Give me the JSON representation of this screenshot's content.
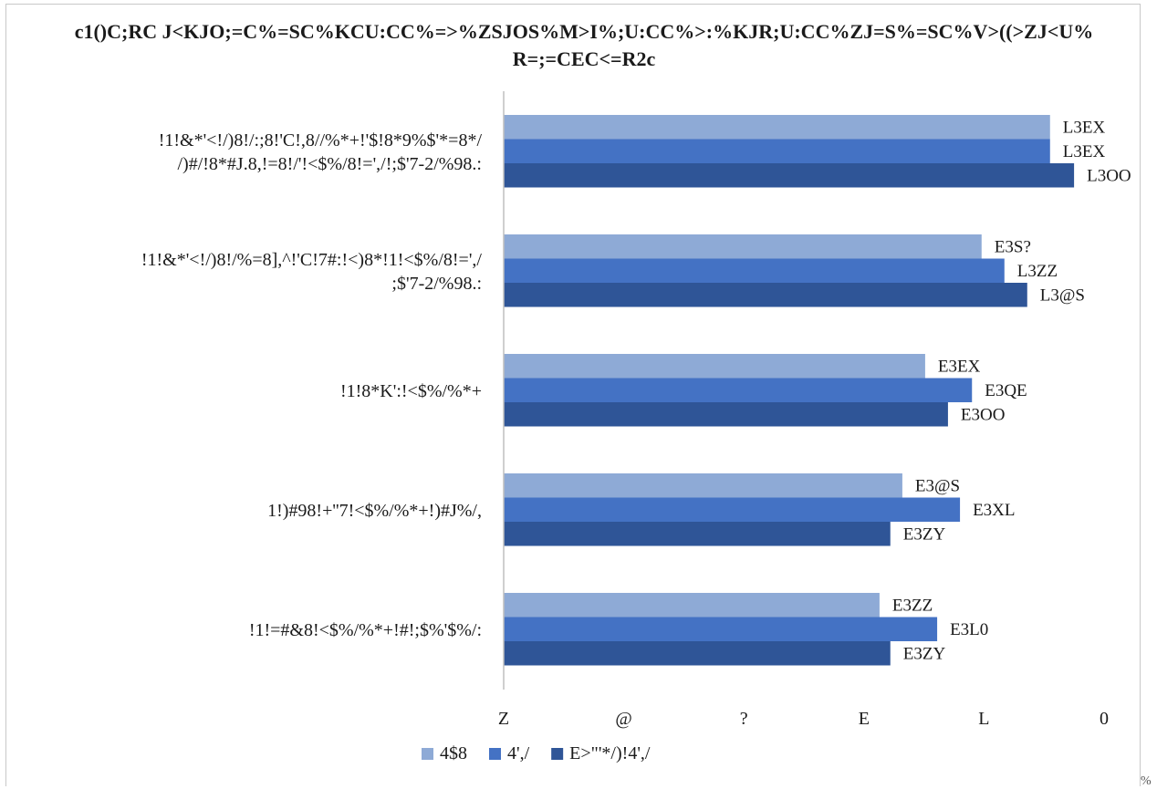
{
  "corner_mark": "%",
  "chart_data": {
    "type": "bar",
    "orientation": "horizontal",
    "title_lines": [
      "c1()C;RC J<KJO;=C%=SC%KCU:CC%=>%ZSJOS%M>I%;U:CC%>:%KJR;U:CC%ZJ=S%=SC%V>((>ZJ<U%",
      "R=;=CEC<=R2c"
    ],
    "categories": [
      [
        "!1!&*'<!/)8!/:;8!'C!,8//%*+!'$!8*9%$'*=8*/",
        "/)#/!8*#J.8,!=8!/'!<$%/8!=',/!;$'7-2/%98.:"
      ],
      [
        "!1!&*'<!/)8!/%=8],^!'C!7#:!<)8*!1!<$%/8!=',/",
        ";$'7-2/%98.:"
      ],
      [
        "!1!8*K':!<$%/%*+"
      ],
      [
        "1!)#98!+''7!<$%/%*+!)#J%/,"
      ],
      [
        "!1!=#&8!<$%/%*+!#!;$%'$%/:"
      ]
    ],
    "series": [
      {
        "name": "4$8",
        "color": "#8eaad6",
        "values": [
          4.55,
          3.98,
          3.51,
          3.32,
          3.13
        ],
        "labels": [
          "L3EX",
          "E3S?",
          "E3EX",
          "E3@S",
          "E3ZZ"
        ]
      },
      {
        "name": "4',/",
        "color": "#4472c4",
        "values": [
          4.55,
          4.17,
          3.9,
          3.8,
          3.61
        ],
        "labels": [
          "L3EX",
          "L3ZZ",
          "E3QE",
          "E3XL",
          "E3L0"
        ]
      },
      {
        "name": "E>\"'*/)!4',/",
        "color": "#2f5597",
        "values": [
          4.75,
          4.36,
          3.7,
          3.22,
          3.22
        ],
        "labels": [
          "L3OO",
          "L3@S",
          "E3OO",
          "E3ZY",
          "E3ZY"
        ]
      }
    ],
    "xlim": [
      0,
      5
    ],
    "x_ticks": [
      0,
      1,
      2,
      3,
      4,
      5
    ],
    "x_tick_labels": [
      "Z",
      "@",
      "?",
      "E",
      "L",
      "0"
    ],
    "grid": false,
    "legend_position": "bottom"
  }
}
